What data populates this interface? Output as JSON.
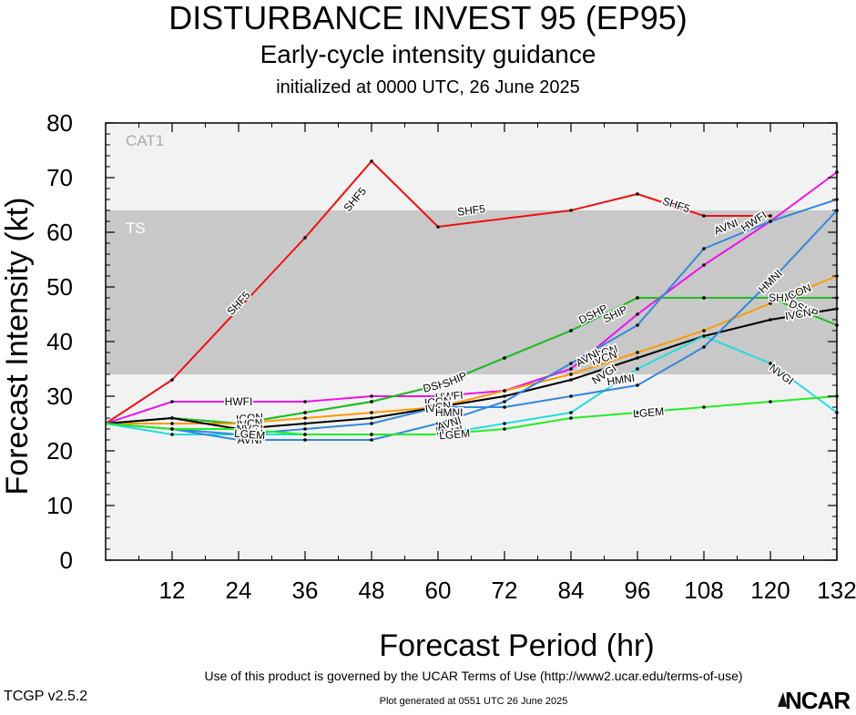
{
  "header": {
    "title": "DISTURBANCE INVEST 95 (EP95)",
    "subtitle": "Early-cycle intensity guidance",
    "init_line": "initialized at 0000 UTC, 26 June 2025"
  },
  "footer": {
    "terms": "Use of this product is governed by the UCAR Terms of Use (http://www2.ucar.edu/terms-of-use)",
    "version": "TCGP v2.5.2",
    "generated": "Plot generated at 0551 UTC   26 June 2025",
    "logo_text": "NCAR"
  },
  "chart_data": {
    "type": "line",
    "xlabel": "Forecast Period (hr)",
    "ylabel": "Forecast Intensity (kt)",
    "xlim": [
      0,
      132
    ],
    "ylim": [
      0,
      80
    ],
    "xticks": [
      12,
      24,
      36,
      48,
      60,
      72,
      84,
      96,
      108,
      120,
      132
    ],
    "yticks": [
      0,
      10,
      20,
      30,
      40,
      50,
      60,
      70,
      80
    ],
    "bands": [
      {
        "name": "TS",
        "from": 34,
        "to": 64,
        "color": "#c8c8c8"
      },
      {
        "name": "CAT1",
        "from": 64,
        "to": 80,
        "color": "#f2f2f2"
      }
    ],
    "below_band_color": "#f2f2f2",
    "series": [
      {
        "name": "SHF5",
        "color": "#ee1111",
        "x": [
          0,
          12,
          36,
          48,
          60,
          84,
          96,
          108,
          120
        ],
        "y": [
          25,
          33,
          59,
          73,
          61,
          64,
          67,
          63,
          63
        ],
        "labels": [
          [
            24,
            47
          ],
          [
            45,
            66
          ],
          [
            66,
            64
          ],
          [
            103,
            65
          ]
        ]
      },
      {
        "name": "HWFI",
        "color": "#ee11ee",
        "x": [
          0,
          12,
          24,
          36,
          48,
          60,
          72,
          84,
          96,
          108,
          120,
          132
        ],
        "y": [
          25,
          29,
          29,
          29,
          30,
          30,
          31,
          35,
          45,
          54,
          62,
          71
        ],
        "labels": [
          [
            24,
            29
          ],
          [
            62,
            30
          ],
          [
            117,
            62
          ]
        ]
      },
      {
        "name": "DSHP",
        "color": "#22bb22",
        "x": [
          0,
          12,
          24,
          36,
          48,
          60,
          72,
          84,
          96,
          108,
          120,
          132
        ],
        "y": [
          25,
          26,
          25,
          27,
          29,
          32,
          37,
          42,
          48,
          48,
          48,
          43
        ],
        "labels": [
          [
            60,
            32
          ],
          [
            88,
            45
          ],
          [
            126,
            46
          ]
        ]
      },
      {
        "name": "SHIP",
        "color": "#22bb22",
        "x": [
          0,
          12,
          24,
          36,
          48,
          60,
          72,
          84,
          96,
          108,
          120,
          132
        ],
        "y": [
          25,
          26,
          25,
          27,
          29,
          32,
          37,
          42,
          48,
          48,
          48,
          48
        ],
        "labels": [
          [
            63,
            33
          ],
          [
            92,
            45
          ],
          [
            122,
            48
          ]
        ]
      },
      {
        "name": "ICON",
        "color": "#ff9900",
        "x": [
          0,
          12,
          24,
          36,
          48,
          60,
          72,
          84,
          96,
          108,
          120,
          132
        ],
        "y": [
          25,
          25,
          25,
          26,
          27,
          28,
          31,
          34,
          38,
          42,
          47,
          52
        ],
        "labels": [
          [
            26,
            26
          ],
          [
            60,
            29
          ],
          [
            90,
            38
          ],
          [
            125,
            49
          ]
        ]
      },
      {
        "name": "IVCN",
        "color": "#000000",
        "x": [
          0,
          12,
          24,
          36,
          48,
          60,
          72,
          84,
          96,
          108,
          120,
          132
        ],
        "y": [
          25,
          26,
          24,
          25,
          26,
          28,
          30,
          33,
          37,
          41,
          44,
          46
        ],
        "labels": [
          [
            26,
            25
          ],
          [
            60,
            28
          ],
          [
            90,
            37
          ],
          [
            125,
            45
          ]
        ]
      },
      {
        "name": "NVGI",
        "color": "#22dddd",
        "x": [
          0,
          12,
          24,
          36,
          48,
          60,
          72,
          84,
          96,
          108,
          120,
          132
        ],
        "y": [
          25,
          23,
          23,
          23,
          23,
          23,
          25,
          27,
          35,
          41,
          36,
          27
        ],
        "labels": [
          [
            26,
            24
          ],
          [
            62,
            24
          ],
          [
            90,
            34
          ],
          [
            122,
            34
          ]
        ]
      },
      {
        "name": "HMNI",
        "color": "#3388dd",
        "x": [
          0,
          12,
          24,
          36,
          48,
          60,
          72,
          84,
          96,
          108,
          120,
          132
        ],
        "y": [
          25,
          24,
          23,
          24,
          25,
          28,
          28,
          30,
          32,
          39,
          51,
          64
        ],
        "labels": [
          [
            26,
            23
          ],
          [
            62,
            27
          ],
          [
            93,
            33
          ],
          [
            120,
            51
          ]
        ]
      },
      {
        "name": "AVNI",
        "color": "#3388dd",
        "x": [
          0,
          12,
          24,
          36,
          48,
          60,
          72,
          84,
          96,
          108,
          120,
          132
        ],
        "y": [
          25,
          24,
          22,
          22,
          22,
          25,
          29,
          36,
          43,
          57,
          62,
          66
        ],
        "labels": [
          [
            26,
            22
          ],
          [
            62,
            25
          ],
          [
            87,
            37
          ],
          [
            112,
            61
          ]
        ]
      },
      {
        "name": "LGEM",
        "color": "#22ee22",
        "x": [
          0,
          12,
          24,
          36,
          48,
          60,
          72,
          84,
          96,
          108,
          120,
          132
        ],
        "y": [
          25,
          24,
          24,
          23,
          23,
          23,
          24,
          26,
          27,
          28,
          29,
          30
        ],
        "labels": [
          [
            26,
            23
          ],
          [
            63,
            23
          ],
          [
            98,
            27
          ]
        ]
      }
    ]
  }
}
